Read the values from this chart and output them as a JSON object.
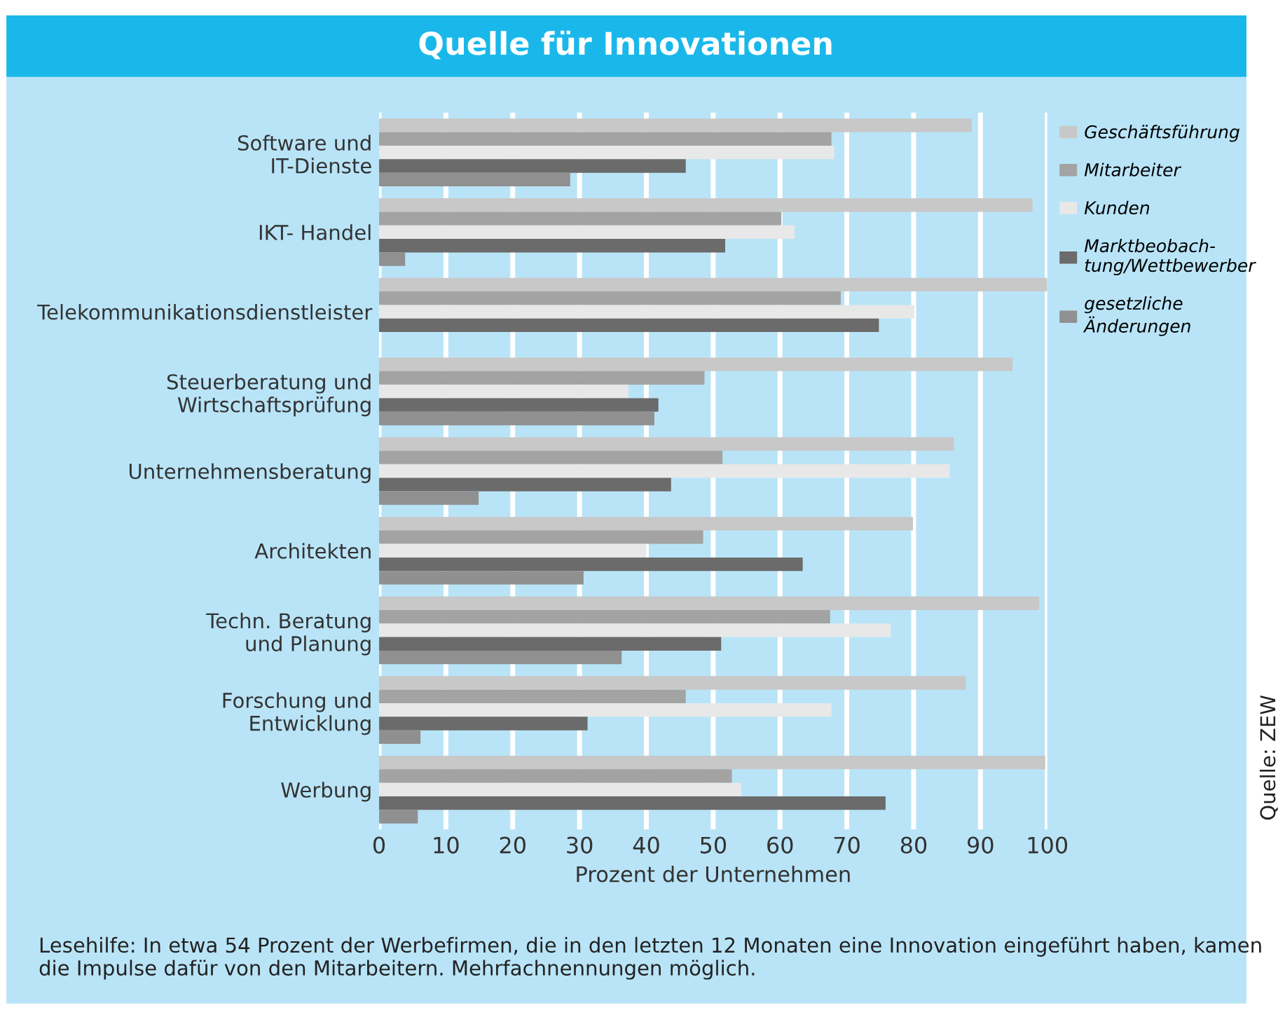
{
  "chart_data": {
    "type": "bar",
    "orientation": "horizontal",
    "title": "Quelle für Innovationen",
    "xlabel": "Prozent der Unternehmen",
    "categories": [
      "Software und\nIT-Dienste",
      "IKT- Handel",
      "Telekommunikationsdienstleister",
      "Steuerberatung und\nWirtschaftsprüfung",
      "Unternehmensberatung",
      "Architekten",
      "Techn. Beratung\nund Planung",
      "Forschung und\nEntwicklung",
      "Werbung"
    ],
    "series": [
      {
        "name": "Geschäftsführung",
        "color": "#c8c8c8",
        "values": [
          88.7,
          97.8,
          100,
          94.8,
          86.0,
          79.9,
          98.8,
          87.8,
          99.7
        ]
      },
      {
        "name": "Mitarbeiter",
        "color": "#a3a3a3",
        "values": [
          67.7,
          60.2,
          69.1,
          48.7,
          51.4,
          48.5,
          67.5,
          45.9,
          52.8
        ]
      },
      {
        "name": "Kunden",
        "color": "#e8e8e8",
        "values": [
          68.1,
          62.2,
          80.1,
          37.3,
          85.4,
          40.0,
          76.6,
          67.7,
          54.2
        ]
      },
      {
        "name": "Marktbeobach-\ntung/Wettbewerber",
        "color": "#6b6b6b",
        "values": [
          45.9,
          51.8,
          74.8,
          41.8,
          43.7,
          63.4,
          51.2,
          31.2,
          75.8
        ]
      },
      {
        "name": "gesetzliche\nÄnderungen",
        "color": "#909090",
        "values": [
          28.6,
          3.9,
          null,
          41.2,
          14.9,
          30.6,
          36.3,
          6.2,
          5.8
        ]
      }
    ],
    "xlim": [
      0,
      100
    ],
    "xticks": [
      0,
      10,
      20,
      30,
      40,
      50,
      60,
      70,
      80,
      90,
      100
    ],
    "grid": "x",
    "legend": "right",
    "annotations": [
      "Lesehilfe: In etwa 54 Prozent der Werbefirmen, die in den letzten 12 Monaten eine Innovation eingeführt haben, kamen die Impulse dafür von den Mitarbeitern. Mehrfachnennungen möglich.",
      "Quelle: ZEW"
    ]
  }
}
